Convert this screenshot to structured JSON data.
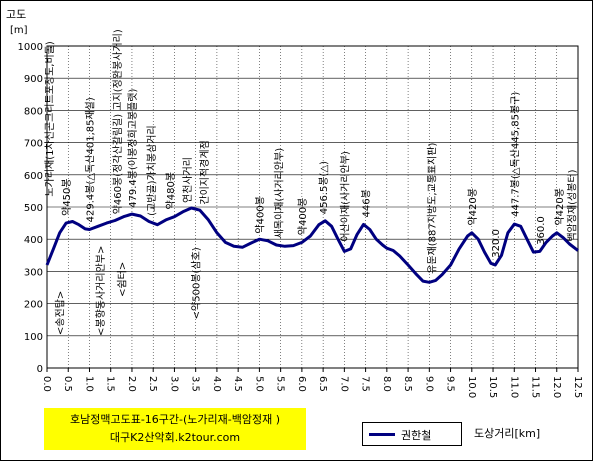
{
  "chart_data": {
    "type": "line",
    "ylabel": "고도",
    "yunit": "[m]",
    "xlabel": "도상거리[km]",
    "ylim": [
      0,
      1000
    ],
    "xlim": [
      0,
      12.5
    ],
    "yticks": [
      0,
      100,
      200,
      300,
      400,
      500,
      600,
      700,
      800,
      900,
      1000
    ],
    "xticks": [
      "0.0",
      "0.5",
      "1.0",
      "1.5",
      "2.0",
      "2.5",
      "3.0",
      "3.5",
      "4.0",
      "4.5",
      "5.0",
      "5.5",
      "6.0",
      "6.5",
      "7.0",
      "7.5",
      "8.0",
      "8.5",
      "9.0",
      "9.5",
      "10.0",
      "10.5",
      "11.0",
      "11.5",
      "12.0",
      "12.5"
    ],
    "grid": true,
    "legend_position": "bottom",
    "series": [
      {
        "name": "권한철",
        "color": "#000080",
        "points": [
          [
            0.0,
            320
          ],
          [
            0.15,
            370
          ],
          [
            0.3,
            420
          ],
          [
            0.45,
            450
          ],
          [
            0.6,
            455
          ],
          [
            0.75,
            445
          ],
          [
            0.9,
            432
          ],
          [
            1.0,
            430
          ],
          [
            1.2,
            440
          ],
          [
            1.4,
            450
          ],
          [
            1.6,
            458
          ],
          [
            1.8,
            470
          ],
          [
            2.0,
            478
          ],
          [
            2.2,
            472
          ],
          [
            2.4,
            455
          ],
          [
            2.6,
            445
          ],
          [
            2.8,
            460
          ],
          [
            3.0,
            470
          ],
          [
            3.2,
            485
          ],
          [
            3.4,
            497
          ],
          [
            3.6,
            490
          ],
          [
            3.8,
            460
          ],
          [
            4.0,
            420
          ],
          [
            4.2,
            390
          ],
          [
            4.4,
            378
          ],
          [
            4.6,
            375
          ],
          [
            4.8,
            388
          ],
          [
            5.0,
            400
          ],
          [
            5.2,
            395
          ],
          [
            5.4,
            382
          ],
          [
            5.6,
            378
          ],
          [
            5.8,
            380
          ],
          [
            6.0,
            390
          ],
          [
            6.2,
            410
          ],
          [
            6.4,
            445
          ],
          [
            6.55,
            457
          ],
          [
            6.7,
            440
          ],
          [
            6.85,
            400
          ],
          [
            7.0,
            362
          ],
          [
            7.15,
            370
          ],
          [
            7.3,
            415
          ],
          [
            7.45,
            446
          ],
          [
            7.6,
            430
          ],
          [
            7.75,
            400
          ],
          [
            7.9,
            382
          ],
          [
            8.0,
            372
          ],
          [
            8.15,
            365
          ],
          [
            8.3,
            348
          ],
          [
            8.5,
            320
          ],
          [
            8.7,
            290
          ],
          [
            8.85,
            270
          ],
          [
            9.0,
            266
          ],
          [
            9.15,
            272
          ],
          [
            9.3,
            290
          ],
          [
            9.5,
            320
          ],
          [
            9.7,
            370
          ],
          [
            9.9,
            410
          ],
          [
            10.0,
            420
          ],
          [
            10.15,
            400
          ],
          [
            10.3,
            360
          ],
          [
            10.45,
            325
          ],
          [
            10.55,
            320
          ],
          [
            10.7,
            350
          ],
          [
            10.85,
            420
          ],
          [
            11.0,
            447
          ],
          [
            11.15,
            440
          ],
          [
            11.3,
            400
          ],
          [
            11.45,
            360
          ],
          [
            11.6,
            362
          ],
          [
            11.75,
            390
          ],
          [
            11.9,
            410
          ],
          [
            12.0,
            420
          ],
          [
            12.15,
            405
          ],
          [
            12.3,
            385
          ],
          [
            12.45,
            370
          ],
          [
            12.5,
            365
          ]
        ]
      }
    ],
    "annotations": [
      {
        "x": 0.05,
        "text": "노가리재(1차선콘크리트포장도,비돌)",
        "at": 520,
        "side": "above"
      },
      {
        "x": 0.45,
        "text": "약450봉",
        "at": 460,
        "side": "above"
      },
      {
        "x": 0.3,
        "text": "<송전탑>",
        "at": 240,
        "side": "below"
      },
      {
        "x": 1.0,
        "text": "429.4봉(△독산401,85재설)",
        "at": 440,
        "side": "above"
      },
      {
        "x": 1.25,
        "text": "<봉향동사거리안부>",
        "at": 380,
        "side": "below"
      },
      {
        "x": 1.65,
        "text": "약460봉(정각산갈림길) 고지(정완봉사거리)",
        "at": 465,
        "side": "above"
      },
      {
        "x": 1.75,
        "text": "<쉼터>",
        "at": 330,
        "side": "below"
      },
      {
        "x": 2.0,
        "text": "479.4봉(이봉정희고봉플랫)",
        "at": 485,
        "side": "above"
      },
      {
        "x": 2.45,
        "text": "(고반골)가치봉삼거리",
        "at": 460,
        "side": "above"
      },
      {
        "x": 2.9,
        "text": "약480봉",
        "at": 480,
        "side": "above"
      },
      {
        "x": 3.3,
        "text": "연천사거리",
        "at": 500,
        "side": "above"
      },
      {
        "x": 3.7,
        "text": "간이지적경계점",
        "at": 495,
        "side": "above"
      },
      {
        "x": 3.5,
        "text": "<약500봉(삼호)",
        "at": 375,
        "side": "below"
      },
      {
        "x": 5.0,
        "text": "약400봉",
        "at": 405,
        "side": "above"
      },
      {
        "x": 5.45,
        "text": "새목이재(사거리안부)",
        "at": 390,
        "side": "above"
      },
      {
        "x": 6.0,
        "text": "약400봉",
        "at": 400,
        "side": "above"
      },
      {
        "x": 6.5,
        "text": "456.5봉(△)",
        "at": 465,
        "side": "above"
      },
      {
        "x": 7.0,
        "text": "어산이재(사거리안부)",
        "at": 380,
        "side": "above"
      },
      {
        "x": 7.5,
        "text": "446봉",
        "at": 455,
        "side": "above"
      },
      {
        "x": 9.05,
        "text": "유둔재(887지방도,교통표지판)",
        "at": 280,
        "side": "above"
      },
      {
        "x": 10.0,
        "text": "약420봉",
        "at": 430,
        "side": "above"
      },
      {
        "x": 10.55,
        "text": "320.0",
        "at": 330,
        "side": "above"
      },
      {
        "x": 11.0,
        "text": "447.7봉(△독산445,85봉구)",
        "at": 457,
        "side": "above"
      },
      {
        "x": 11.6,
        "text": "360.0",
        "at": 370,
        "side": "above"
      },
      {
        "x": 12.05,
        "text": "약420봉",
        "at": 430,
        "side": "above"
      },
      {
        "x": 12.35,
        "text": "백암정재(성봉터)",
        "at": 380,
        "side": "above"
      }
    ]
  },
  "title_box": {
    "line1": "호남정맥고도표-16구간-(노가리재-백암정재 )",
    "line2": "대구K2산악회.k2tour.com"
  },
  "legend": {
    "label": "권한철"
  }
}
